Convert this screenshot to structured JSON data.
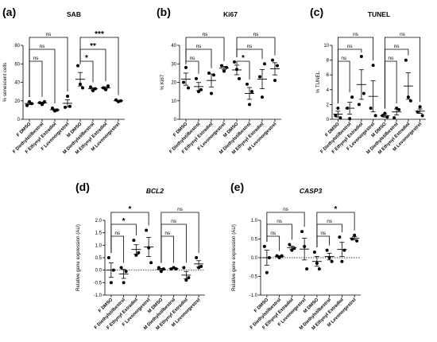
{
  "chart_data": [
    {
      "type": "scatter",
      "panel": "(a)",
      "title": "SAB",
      "title_italic": false,
      "ylabel": "% senescent cells",
      "ylim": [
        0,
        80
      ],
      "yticks": [
        "0",
        "20",
        "40",
        "60",
        "80"
      ],
      "categories": [
        "F DMSO",
        "F Diethylstilbestrol",
        "F Ethynyl Estradiol",
        "F Levonorgestrel",
        "M DMSO",
        "M Diethylstilbestrol",
        "M Ethynyl Estradiol",
        "M Levonorgestrel"
      ],
      "points": [
        [
          15,
          19,
          17
        ],
        [
          18,
          16,
          19
        ],
        [
          12,
          9,
          10
        ],
        [
          13,
          25,
          14
        ],
        [
          58,
          38,
          34
        ],
        [
          35,
          31,
          33
        ],
        [
          34,
          32,
          36
        ],
        [
          21,
          19,
          20
        ]
      ],
      "mean": [
        17,
        17.7,
        10.3,
        17.3,
        43.3,
        33,
        34,
        20
      ],
      "sem": [
        1.2,
        0.9,
        0.9,
        3.8,
        7.3,
        1.2,
        1.2,
        0.6
      ],
      "brackets": [
        {
          "from": 0,
          "to": 3,
          "label": "ns",
          "level": 2
        },
        {
          "from": 0,
          "to": 2,
          "label": "ns",
          "level": 1
        },
        {
          "from": 0,
          "to": 1,
          "label": "ns",
          "level": 0
        },
        {
          "from": 4,
          "to": 7,
          "label": "***",
          "level": 2
        },
        {
          "from": 4,
          "to": 6,
          "label": "**",
          "level": 1
        },
        {
          "from": 4,
          "to": 5,
          "label": "*",
          "level": 0
        }
      ]
    },
    {
      "type": "scatter",
      "panel": "(b)",
      "title": "Ki67",
      "title_italic": false,
      "ylabel": "% Ki67",
      "ylim": [
        0,
        40
      ],
      "yticks": [
        "0",
        "10",
        "20",
        "30",
        "40"
      ],
      "categories": [
        "F DMSO",
        "F Diethylstilbestrol",
        "F Ethynyl Estradiol",
        "F Levonorgestrel",
        "M DMSO",
        "M Diethylstilbestrol",
        "M Ethynyl Estradiol",
        "M Levonorgestrel"
      ],
      "points": [
        [
          20,
          28,
          17
        ],
        [
          22,
          15,
          16
        ],
        [
          25,
          14,
          24
        ],
        [
          29,
          26,
          28
        ],
        [
          31,
          27,
          22
        ],
        [
          19,
          8,
          15
        ],
        [
          23,
          12,
          30
        ],
        [
          32,
          21,
          29
        ]
      ],
      "mean": [
        21.7,
        17.7,
        21,
        27.7,
        26.7,
        14,
        21.7,
        27.3
      ],
      "sem": [
        3.3,
        2.2,
        3.5,
        0.9,
        2.6,
        3.2,
        5.2,
        3.3
      ],
      "brackets": [
        {
          "from": 0,
          "to": 3,
          "label": "ns",
          "level": 2
        },
        {
          "from": 0,
          "to": 2,
          "label": "ns",
          "level": 1
        },
        {
          "from": 0,
          "to": 1,
          "label": "ns",
          "level": 0
        },
        {
          "from": 4,
          "to": 7,
          "label": "ns",
          "level": 2
        },
        {
          "from": 4,
          "to": 6,
          "label": "ns",
          "level": 1
        },
        {
          "from": 4,
          "to": 5,
          "label": "*",
          "level": 0
        }
      ]
    },
    {
      "type": "scatter",
      "panel": "(c)",
      "title": "TUNEL",
      "title_italic": false,
      "ylabel": "% TUNEL",
      "ylim": [
        0,
        10
      ],
      "yticks": [
        "0",
        "2",
        "4",
        "6",
        "8",
        "10"
      ],
      "categories": [
        "F DMSO",
        "F Diethylstilbestrol",
        "F Ethynyl Estradiol",
        "F Levonorgestrel",
        "M DMSO",
        "M Diethylstilbestrol",
        "M Ethynyl Estradiol",
        "M Levonorgestrel"
      ],
      "points": [
        [
          0.5,
          1.5,
          0.2
        ],
        [
          1.5,
          0.1,
          3.0
        ],
        [
          2.0,
          8.5,
          3.5
        ],
        [
          1.5,
          7.3,
          0.5
        ],
        [
          0.5,
          0.8,
          0.3
        ],
        [
          0.2,
          1.5,
          1.3
        ],
        [
          8.0,
          3.0,
          2.5
        ],
        [
          1.0,
          1.7,
          0.5
        ]
      ],
      "mean": [
        0.7,
        1.5,
        4.7,
        3.1,
        0.5,
        1.0,
        4.5,
        1.1
      ],
      "sem": [
        0.4,
        0.8,
        2.0,
        2.1,
        0.2,
        0.4,
        1.8,
        0.3
      ],
      "brackets": [
        {
          "from": 0,
          "to": 3,
          "label": "ns",
          "level": 2
        },
        {
          "from": 0,
          "to": 2,
          "label": "ns",
          "level": 1
        },
        {
          "from": 0,
          "to": 1,
          "label": "ns",
          "level": 0
        },
        {
          "from": 4,
          "to": 7,
          "label": "ns",
          "level": 2
        },
        {
          "from": 4,
          "to": 6,
          "label": "ns",
          "level": 1
        },
        {
          "from": 4,
          "to": 5,
          "label": "ns",
          "level": 0
        }
      ]
    },
    {
      "type": "scatter",
      "panel": "(d)",
      "title": "BCL2",
      "title_italic": true,
      "ylabel": "Relative gene expression (AU)",
      "ylim": [
        -1.0,
        2.0
      ],
      "yticks": [
        "-1.0",
        "-0.5",
        "0.0",
        "0.5",
        "1.0",
        "1.5",
        "2.0"
      ],
      "zero_line": true,
      "categories": [
        "F DMSO",
        "F Diethylstilbestrol",
        "F Ethynyl Estradiol",
        "F Levonorgestrel",
        "M DMSO",
        "M Diethylstilbestrol",
        "M Ethynyl Estradiol",
        "M Levonorgestrel"
      ],
      "points": [
        [
          0.5,
          -0.5,
          0.0
        ],
        [
          0.1,
          -0.5,
          -0.05
        ],
        [
          1.2,
          0.6,
          0.7
        ],
        [
          1.6,
          0.9,
          0.3
        ],
        [
          0.1,
          -0.05,
          0.05
        ],
        [
          0.05,
          0.1,
          0.05
        ],
        [
          0.1,
          -0.4,
          -0.3
        ],
        [
          0.5,
          0.1,
          0.15
        ]
      ],
      "mean": [
        0.0,
        -0.15,
        0.83,
        0.93,
        0.03,
        0.07,
        -0.2,
        0.25
      ],
      "sem": [
        0.29,
        0.18,
        0.19,
        0.38,
        0.04,
        0.02,
        0.15,
        0.13
      ],
      "brackets": [
        {
          "from": 0,
          "to": 3,
          "label": "*",
          "level": 2
        },
        {
          "from": 0,
          "to": 2,
          "label": "*",
          "level": 1
        },
        {
          "from": 0,
          "to": 1,
          "label": "ns",
          "level": 0
        },
        {
          "from": 4,
          "to": 7,
          "label": "ns",
          "level": 2
        },
        {
          "from": 4,
          "to": 6,
          "label": "ns",
          "level": 1
        },
        {
          "from": 4,
          "to": 5,
          "label": "ns",
          "level": 0
        }
      ]
    },
    {
      "type": "scatter",
      "panel": "(e)",
      "title": "CASP3",
      "title_italic": true,
      "ylabel": "Relative gene expression (AU)",
      "ylim": [
        -1.0,
        1.0
      ],
      "yticks": [
        "-1.0",
        "-0.5",
        "0.0",
        "0.5",
        "1.0"
      ],
      "zero_line": true,
      "categories": [
        "F DMSO",
        "F Diethylstilbestrol",
        "F Ethynyl Estradiol",
        "F Levonorgestrel",
        "M DMSO",
        "M Diethylstilbestrol",
        "M Ethynyl Estradiol",
        "M Levonorgestrel"
      ],
      "points": [
        [
          0.3,
          -0.4,
          0.0
        ],
        [
          0.05,
          0.0,
          0.05
        ],
        [
          0.35,
          0.2,
          0.25
        ],
        [
          0.7,
          0.3,
          -0.3
        ],
        [
          0.15,
          -0.15,
          -0.3
        ],
        [
          0.2,
          0.0,
          -0.1
        ],
        [
          0.55,
          -0.1,
          0.2
        ],
        [
          0.5,
          0.6,
          0.45
        ]
      ],
      "mean": [
        0.0,
        0.03,
        0.27,
        0.23,
        -0.1,
        0.03,
        0.22,
        0.52
      ],
      "sem": [
        0.2,
        0.02,
        0.04,
        0.29,
        0.13,
        0.09,
        0.19,
        0.04
      ],
      "brackets": [
        {
          "from": 0,
          "to": 3,
          "label": "ns",
          "level": 2
        },
        {
          "from": 0,
          "to": 2,
          "label": "ns",
          "level": 1
        },
        {
          "from": 0,
          "to": 1,
          "label": "ns",
          "level": 0
        },
        {
          "from": 4,
          "to": 7,
          "label": "*",
          "level": 2
        },
        {
          "from": 4,
          "to": 6,
          "label": "ns",
          "level": 1
        },
        {
          "from": 4,
          "to": 5,
          "label": "ns",
          "level": 0
        }
      ]
    }
  ]
}
